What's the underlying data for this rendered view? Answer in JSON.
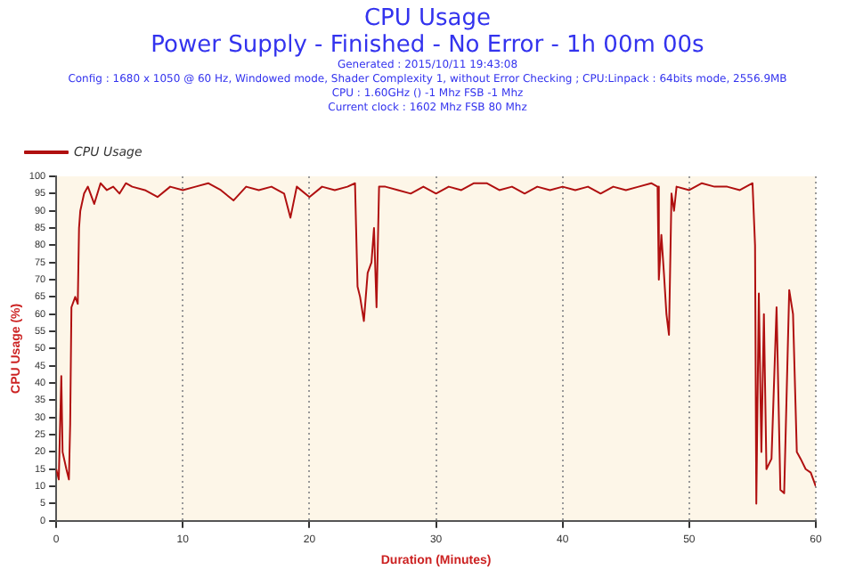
{
  "chart_data": {
    "type": "line",
    "title": "CPU Usage",
    "subtitle": "Power Supply - Finished - No Error - 1h 00m 00s",
    "annotations": [
      "Generated : 2015/10/11 19:43:08",
      "Config : 1680 x 1050 @ 60 Hz, Windowed mode, Shader Complexity 1, without Error Checking ; CPU:Linpack : 64bits mode, 2556.9MB",
      "CPU : 1.60GHz () -1 Mhz FSB -1 Mhz",
      "Current clock : 1602 Mhz FSB 80 Mhz"
    ],
    "xlabel": "Duration (Minutes)",
    "ylabel": "CPU Usage (%)",
    "x": [
      0,
      0.2,
      0.4,
      0.5,
      0.8,
      1.0,
      1.1,
      1.2,
      1.5,
      1.7,
      1.8,
      1.9,
      2.2,
      2.5,
      3,
      3.5,
      4,
      4.5,
      5,
      5.5,
      6,
      7,
      8,
      9,
      10,
      11,
      12,
      13,
      14,
      15,
      16,
      17,
      18,
      18.5,
      19,
      20,
      21,
      22,
      23,
      23.6,
      23.8,
      24,
      24.3,
      24.6,
      24.9,
      25.1,
      25.3,
      25.5,
      26,
      27,
      28,
      29,
      30,
      31,
      32,
      33,
      34,
      35,
      36,
      37,
      38,
      39,
      40,
      41,
      42,
      43,
      44,
      45,
      46,
      47,
      47.5,
      47.6,
      47.8,
      48,
      48.2,
      48.4,
      48.6,
      48.8,
      49,
      50,
      51,
      52,
      53,
      54,
      55,
      55.2,
      55.3,
      55.5,
      55.7,
      55.9,
      56.1,
      56.5,
      56.9,
      57.2,
      57.5,
      57.9,
      58.2,
      58.5,
      58.8,
      59.2,
      59.6,
      60
    ],
    "series": [
      {
        "name": "CPU Usage",
        "color": "#b01010",
        "values": [
          15,
          12,
          42,
          20,
          15,
          12,
          28,
          62,
          65,
          63,
          85,
          90,
          95,
          97,
          92,
          98,
          96,
          97,
          95,
          98,
          97,
          96,
          94,
          97,
          96,
          97,
          98,
          96,
          93,
          97,
          96,
          97,
          95,
          88,
          97,
          94,
          97,
          96,
          97,
          98,
          68,
          65,
          58,
          72,
          75,
          85,
          62,
          97,
          97,
          96,
          95,
          97,
          95,
          97,
          96,
          98,
          98,
          96,
          97,
          95,
          97,
          96,
          97,
          96,
          97,
          95,
          97,
          96,
          97,
          98,
          97,
          70,
          83,
          72,
          60,
          54,
          95,
          90,
          97,
          96,
          98,
          97,
          97,
          96,
          98,
          80,
          5,
          66,
          20,
          60,
          15,
          18,
          62,
          9,
          8,
          67,
          60,
          20,
          18,
          15,
          14,
          10
        ]
      }
    ],
    "xlim": [
      0,
      60
    ],
    "xticks": [
      0,
      10,
      20,
      30,
      40,
      50,
      60
    ],
    "ylim": [
      0,
      100
    ],
    "yticks": [
      0,
      5,
      10,
      15,
      20,
      25,
      30,
      35,
      40,
      45,
      50,
      55,
      60,
      65,
      70,
      75,
      80,
      85,
      90,
      95,
      100
    ],
    "grid": "x",
    "legend": "top left",
    "line_style": "solid",
    "marker": "none"
  }
}
